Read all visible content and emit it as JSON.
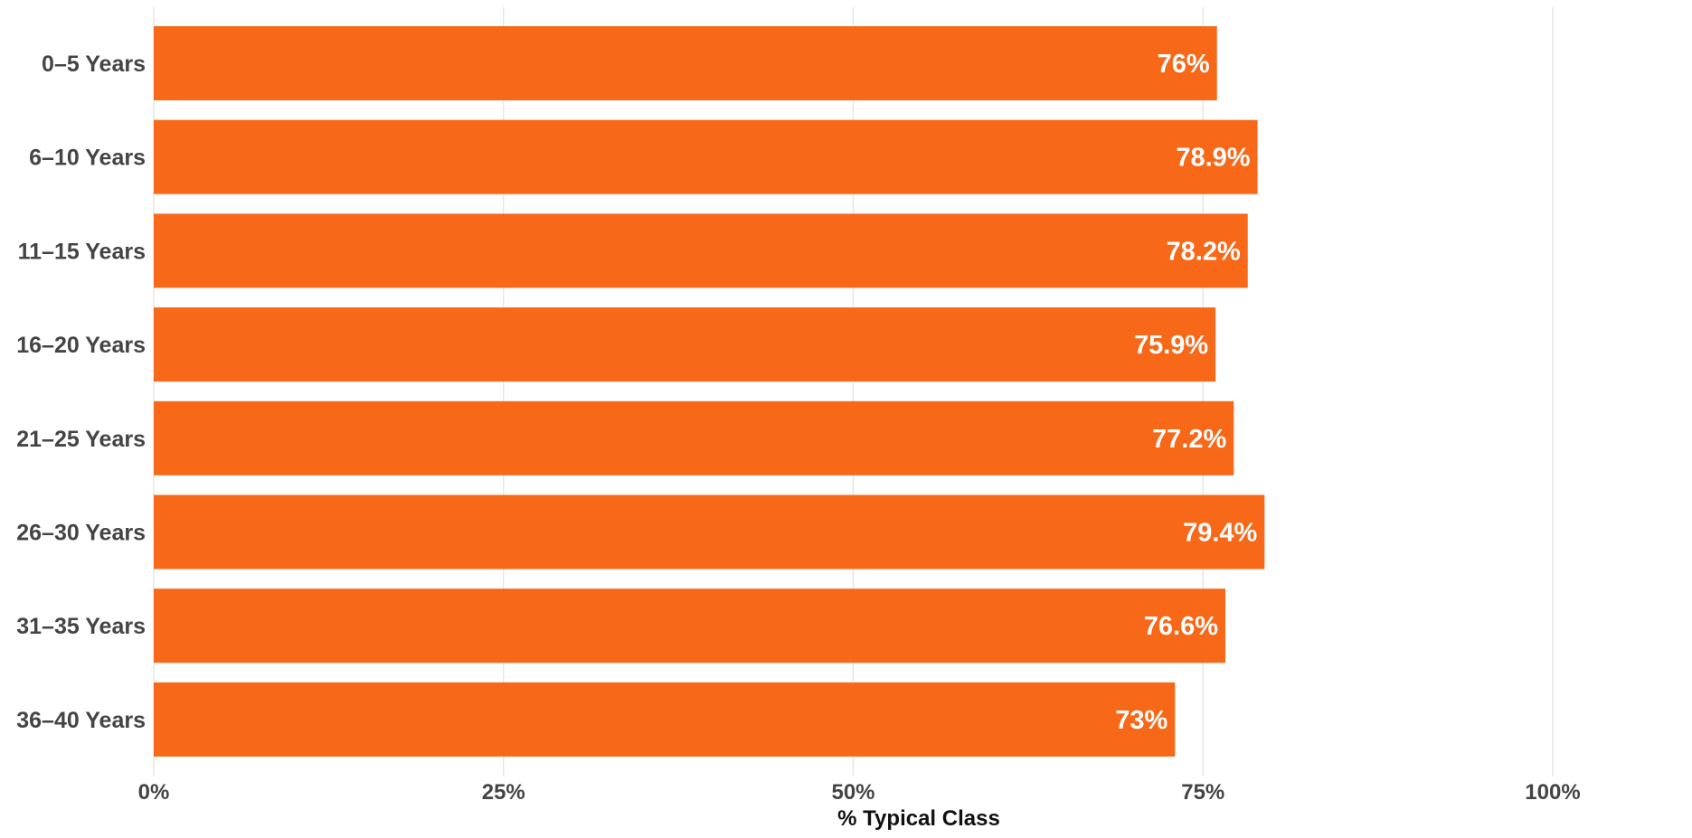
{
  "chart_data": {
    "type": "bar",
    "orientation": "horizontal",
    "categories": [
      "0–5 Years",
      "6–10 Years",
      "11–15 Years",
      "16–20 Years",
      "21–25 Years",
      "26–30 Years",
      "31–35 Years",
      "36–40 Years"
    ],
    "values": [
      76,
      78.9,
      78.2,
      75.9,
      77.2,
      79.4,
      76.6,
      73
    ],
    "data_labels": [
      "76%",
      "78.9%",
      "78.2%",
      "75.9%",
      "77.2%",
      "79.4%",
      "76.6%",
      "73%"
    ],
    "xlabel": "% Typical Class",
    "ylabel": "",
    "xlim": [
      0,
      100
    ],
    "x_ticks": [
      0,
      25,
      50,
      75,
      100
    ],
    "x_tick_labels": [
      "0%",
      "25%",
      "50%",
      "75%",
      "100%"
    ],
    "grid": "vertical",
    "bar_color": "#F76819",
    "label_color": "#FFFFFF"
  }
}
